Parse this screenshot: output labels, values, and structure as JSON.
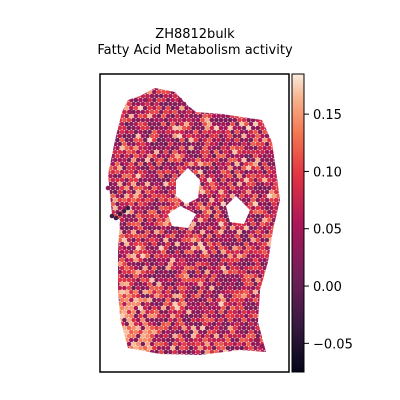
{
  "chart_data": {
    "type": "heatmap",
    "title_line1": "ZH8812bulk",
    "title_line2": "Fatty Acid Metabolism activity",
    "colormap": "rocket",
    "colorbar": {
      "range": [
        -0.075,
        0.185
      ],
      "ticks": [
        -0.05,
        0.0,
        0.05,
        0.1,
        0.15
      ],
      "tick_labels": [
        "−0.05",
        "0.00",
        "0.05",
        "0.10",
        "0.15"
      ]
    },
    "grid": false,
    "axes_ticks_shown": false,
    "colors": {
      "low": "#03051a",
      "mid": "#cb1b4f",
      "high": "#faebdd",
      "frame": "#000000"
    }
  }
}
